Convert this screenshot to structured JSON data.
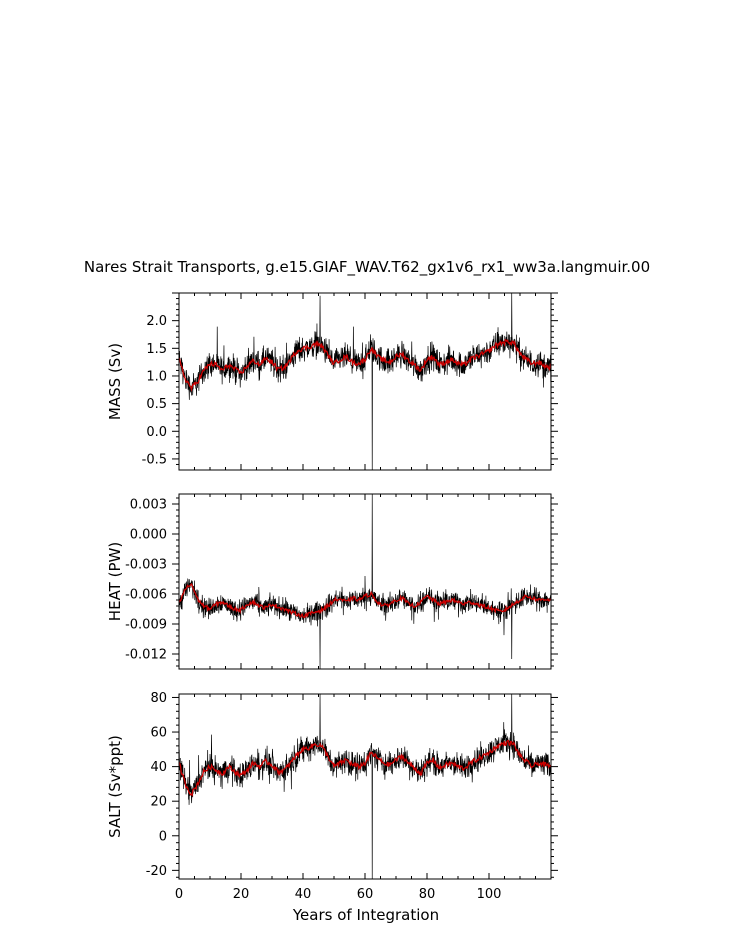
{
  "figure": {
    "title": "Nares Strait Transports, g.e15.GIAF_WAV.T62_gx1v6_rx1_ww3a.langmuir.00",
    "xlabel": "Years of Integration"
  },
  "chart_data": [
    {
      "type": "line",
      "ylabel": "MASS (Sv)",
      "xlim": [
        0,
        120
      ],
      "ylim": [
        -0.7,
        2.5
      ],
      "xticks": [
        "0",
        "20",
        "40",
        "60",
        "80",
        "100"
      ],
      "yticks": [
        "-0.5",
        "0.0",
        "0.5",
        "1.0",
        "1.5",
        "2.0"
      ],
      "ytick_values": [
        -0.5,
        0.0,
        0.5,
        1.0,
        1.5,
        2.0
      ],
      "smooth_x": [
        0,
        2,
        4,
        6,
        8,
        10,
        12,
        14,
        16,
        18,
        20,
        22,
        24,
        26,
        28,
        30,
        32,
        34,
        36,
        38,
        40,
        42,
        44,
        46,
        48,
        50,
        52,
        54,
        56,
        58,
        60,
        62,
        64,
        66,
        68,
        70,
        72,
        74,
        76,
        78,
        80,
        82,
        84,
        86,
        88,
        90,
        92,
        94,
        96,
        98,
        100,
        102,
        104,
        106,
        108,
        110,
        112,
        114,
        116,
        118,
        120
      ],
      "smooth_y": [
        1.3,
        0.95,
        0.78,
        0.9,
        1.1,
        1.22,
        1.2,
        1.1,
        1.2,
        1.12,
        1.05,
        1.18,
        1.28,
        1.2,
        1.32,
        1.25,
        1.12,
        1.15,
        1.3,
        1.45,
        1.5,
        1.52,
        1.58,
        1.55,
        1.38,
        1.22,
        1.3,
        1.35,
        1.25,
        1.22,
        1.3,
        1.5,
        1.35,
        1.28,
        1.25,
        1.35,
        1.4,
        1.28,
        1.2,
        1.1,
        1.3,
        1.35,
        1.2,
        1.25,
        1.3,
        1.22,
        1.2,
        1.3,
        1.35,
        1.4,
        1.45,
        1.55,
        1.6,
        1.62,
        1.6,
        1.4,
        1.3,
        1.22,
        1.25,
        1.18,
        1.15
      ],
      "noise_amp": 0.35,
      "spikes": [
        {
          "x": 45.5,
          "y": 2.45
        },
        {
          "x": 62.3,
          "y": -0.72
        },
        {
          "x": 107.3,
          "y": 2.5
        }
      ]
    },
    {
      "type": "line",
      "ylabel": "HEAT (PW)",
      "xlim": [
        0,
        120
      ],
      "ylim": [
        -0.0135,
        0.004
      ],
      "xticks": [
        "0",
        "20",
        "40",
        "60",
        "80",
        "100"
      ],
      "yticks": [
        "0.003",
        "0.000",
        "-0.003",
        "-0.006",
        "-0.009",
        "-0.012"
      ],
      "ytick_values": [
        0.003,
        0.0,
        -0.003,
        -0.006,
        -0.009,
        -0.012
      ],
      "smooth_x": [
        0,
        2,
        4,
        6,
        8,
        10,
        12,
        14,
        16,
        18,
        20,
        22,
        24,
        26,
        28,
        30,
        32,
        34,
        36,
        38,
        40,
        42,
        44,
        46,
        48,
        50,
        52,
        54,
        56,
        58,
        60,
        62,
        64,
        66,
        68,
        70,
        72,
        74,
        76,
        78,
        80,
        82,
        84,
        86,
        88,
        90,
        92,
        94,
        96,
        98,
        100,
        102,
        104,
        106,
        108,
        110,
        112,
        114,
        116,
        118,
        120
      ],
      "smooth_y": [
        -0.007,
        -0.0055,
        -0.005,
        -0.0065,
        -0.0072,
        -0.0075,
        -0.007,
        -0.0068,
        -0.0072,
        -0.0075,
        -0.0076,
        -0.007,
        -0.0068,
        -0.0072,
        -0.0074,
        -0.007,
        -0.0073,
        -0.0075,
        -0.0078,
        -0.008,
        -0.0082,
        -0.008,
        -0.0078,
        -0.0076,
        -0.0072,
        -0.0066,
        -0.0065,
        -0.0068,
        -0.0064,
        -0.0066,
        -0.0062,
        -0.006,
        -0.0068,
        -0.0072,
        -0.007,
        -0.0066,
        -0.0064,
        -0.007,
        -0.0072,
        -0.0068,
        -0.0062,
        -0.0066,
        -0.007,
        -0.0068,
        -0.0066,
        -0.0068,
        -0.007,
        -0.0068,
        -0.007,
        -0.0072,
        -0.0074,
        -0.0076,
        -0.0078,
        -0.0074,
        -0.007,
        -0.0066,
        -0.0062,
        -0.0064,
        -0.0066,
        -0.0065,
        -0.0066
      ],
      "noise_amp": 0.0015,
      "spikes": [
        {
          "x": 62.3,
          "y": 0.004
        },
        {
          "x": 45.5,
          "y": -0.0135
        },
        {
          "x": 107.3,
          "y": -0.0125
        }
      ]
    },
    {
      "type": "line",
      "ylabel": "SALT (Sv*ppt)",
      "xlim": [
        0,
        120
      ],
      "ylim": [
        -25,
        82
      ],
      "xticks": [
        "0",
        "20",
        "40",
        "60",
        "80",
        "100"
      ],
      "yticks": [
        "80",
        "60",
        "40",
        "20",
        "0",
        "-20"
      ],
      "ytick_values": [
        80,
        60,
        40,
        20,
        0,
        -20
      ],
      "smooth_x": [
        0,
        2,
        4,
        6,
        8,
        10,
        12,
        14,
        16,
        18,
        20,
        22,
        24,
        26,
        28,
        30,
        32,
        34,
        36,
        38,
        40,
        42,
        44,
        46,
        48,
        50,
        52,
        54,
        56,
        58,
        60,
        62,
        64,
        66,
        68,
        70,
        72,
        74,
        76,
        78,
        80,
        82,
        84,
        86,
        88,
        90,
        92,
        94,
        96,
        98,
        100,
        102,
        104,
        106,
        108,
        110,
        112,
        114,
        116,
        118,
        120
      ],
      "smooth_y": [
        42,
        30,
        24,
        30,
        37,
        40,
        38,
        36,
        40,
        37,
        35,
        38,
        42,
        40,
        43,
        41,
        37,
        38,
        42,
        47,
        50,
        51,
        53,
        52,
        46,
        40,
        42,
        44,
        41,
        40,
        42,
        48,
        45,
        42,
        41,
        44,
        46,
        42,
        39,
        36,
        42,
        44,
        39,
        41,
        42,
        40,
        39,
        42,
        44,
        46,
        48,
        51,
        53,
        54,
        53,
        46,
        43,
        40,
        42,
        41,
        40
      ],
      "noise_amp": 11,
      "spikes": [
        {
          "x": 45.5,
          "y": 82
        },
        {
          "x": 62.3,
          "y": -25
        },
        {
          "x": 107.3,
          "y": 82
        }
      ]
    }
  ]
}
